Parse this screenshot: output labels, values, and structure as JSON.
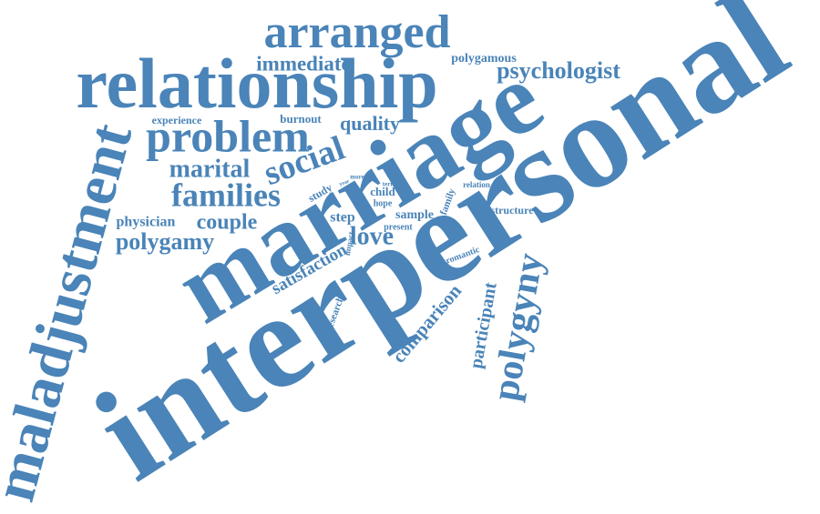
{
  "words": [
    "interpersonal",
    "marriage",
    "maladjustment",
    "relationship",
    "arranged",
    "problem",
    "polygyny",
    "immediate",
    "psychologist",
    "polygamous",
    "quality",
    "burnout",
    "experience",
    "social",
    "marital",
    "families",
    "physician",
    "couple",
    "polygamy",
    "step",
    "love",
    "satisfaction",
    "comparison",
    "participant",
    "research",
    "impact",
    "romantic",
    "present",
    "sample",
    "hope",
    "child",
    "family",
    "structure",
    "relation",
    "term",
    "study",
    "more",
    "year",
    "chao"
  ],
  "color": "#4a84b8"
}
